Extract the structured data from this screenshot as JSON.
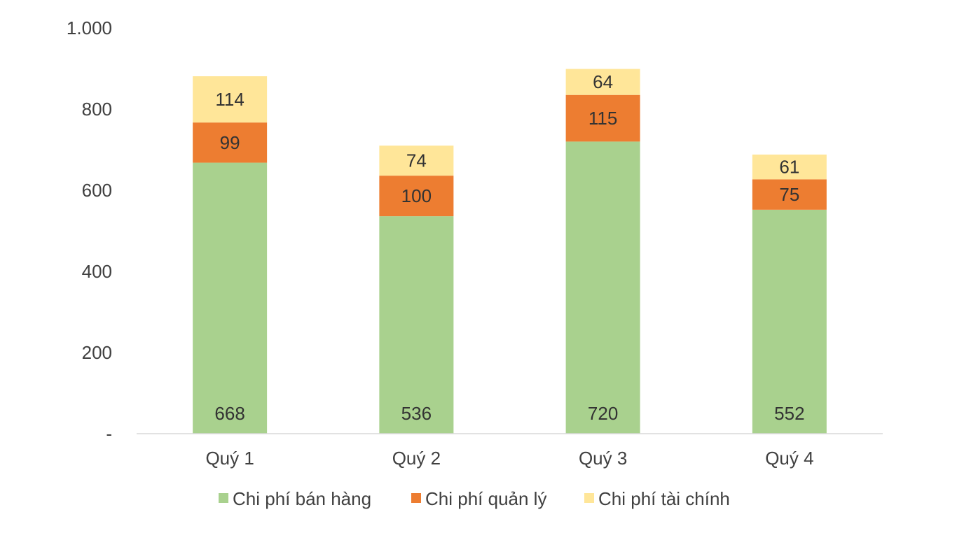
{
  "chart_data": {
    "type": "bar",
    "stacked": true,
    "categories": [
      "Quý 1",
      "Quý 2",
      "Quý 3",
      "Quý 4"
    ],
    "series": [
      {
        "name": "Chi phí bán hàng",
        "values": [
          668,
          536,
          720,
          552
        ],
        "color": "#a9d18e"
      },
      {
        "name": "Chi phí quản lý",
        "values": [
          99,
          100,
          115,
          75
        ],
        "color": "#ed7d31"
      },
      {
        "name": "Chi phí tài chính",
        "values": [
          114,
          74,
          64,
          61
        ],
        "color": "#ffe699"
      }
    ],
    "ylim": [
      0,
      1000
    ],
    "yticks": [
      0,
      200,
      400,
      600,
      800,
      1000
    ],
    "ytick_labels": [
      "-",
      "200",
      "400",
      "600",
      "800",
      "1.000"
    ],
    "grid": false,
    "legend_position": "bottom"
  }
}
